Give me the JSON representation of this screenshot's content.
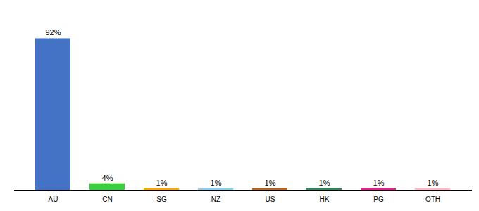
{
  "chart_data": {
    "type": "bar",
    "categories": [
      "AU",
      "CN",
      "SG",
      "NZ",
      "US",
      "HK",
      "PG",
      "OTH"
    ],
    "values": [
      92,
      4,
      1,
      1,
      1,
      1,
      1,
      1
    ],
    "value_labels": [
      "92%",
      "4%",
      "1%",
      "1%",
      "1%",
      "1%",
      "1%",
      "1%"
    ],
    "colors": [
      "#4472c4",
      "#3dcc3d",
      "#ffa500",
      "#87ceeb",
      "#b5651d",
      "#2e8b57",
      "#e91e8c",
      "#ffb6c1"
    ],
    "ylim": [
      0,
      105
    ],
    "data_labels": true,
    "tick_labels": "x",
    "grid": false
  }
}
